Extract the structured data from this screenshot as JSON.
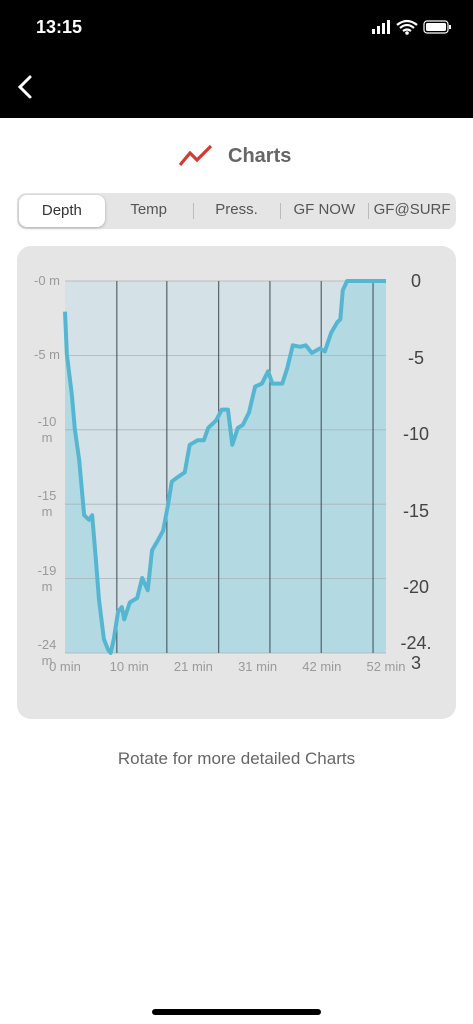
{
  "status_bar": {
    "time": "13:15"
  },
  "header": {
    "title": "Charts"
  },
  "tabs": {
    "items": [
      "Depth",
      "Temp",
      "Press.",
      "GF NOW",
      "GF@SURF"
    ],
    "selected": 0
  },
  "chart_data": {
    "type": "line",
    "x": [
      0,
      0.3,
      1.1,
      1.6,
      2.3,
      3.1,
      3.9,
      4.4,
      5.0,
      5.5,
      6.3,
      7.0,
      7.4,
      7.9,
      8.6,
      9.2,
      9.6,
      10.5,
      11.7,
      12.5,
      13.4,
      14.1,
      15.1,
      15.9,
      16.7,
      17.3,
      18.3,
      19.4,
      20.2,
      21.5,
      22.5,
      23.2,
      24.5,
      25.4,
      26.4,
      27.1,
      28.0,
      28.8,
      29.8,
      30.8,
      31.9,
      32.9,
      33.6,
      35.2,
      36.0,
      36.9,
      38.1,
      39.0,
      40.0,
      41.3,
      42.1,
      43.1,
      44.1,
      44.6,
      45.0,
      45.7,
      52.0
    ],
    "values": [
      -2.0,
      -4.8,
      -7.4,
      -9.7,
      -11.7,
      -15.3,
      -15.6,
      -15.3,
      -18.2,
      -20.8,
      -23.4,
      -24.1,
      -24.3,
      -23.4,
      -21.6,
      -21.3,
      -22.1,
      -21.0,
      -20.7,
      -19.4,
      -20.2,
      -17.6,
      -16.9,
      -16.3,
      -14.6,
      -13.1,
      -12.8,
      -12.5,
      -10.7,
      -10.4,
      -10.4,
      -9.6,
      -9.1,
      -8.4,
      -8.4,
      -10.7,
      -9.6,
      -9.4,
      -8.6,
      -6.9,
      -6.7,
      -5.9,
      -6.7,
      -6.7,
      -5.7,
      -4.2,
      -4.3,
      -4.2,
      -4.7,
      -4.4,
      -4.6,
      -3.4,
      -2.7,
      -2.5,
      -0.6,
      0,
      0
    ],
    "color": "#55b6d2",
    "area_color": "#b3dae2",
    "xlim": [
      0,
      52
    ],
    "xticks": [
      {
        "value": 0,
        "label": "0 min"
      },
      {
        "value": 10.4,
        "label": "10 min"
      },
      {
        "value": 20.8,
        "label": "21 min"
      },
      {
        "value": 31.2,
        "label": "31 min"
      },
      {
        "value": 41.6,
        "label": "42 min"
      },
      {
        "value": 52,
        "label": "52 min"
      }
    ],
    "xgrid": [
      8.4,
      16.5,
      24.9,
      33.2,
      41.5,
      49.9
    ],
    "ylim": [
      -24.3,
      0
    ],
    "yticks": [
      {
        "value": 0,
        "label": "-0 m"
      },
      {
        "value": -4.86,
        "label": "-5 m"
      },
      {
        "value": -9.72,
        "label": "-10 m"
      },
      {
        "value": -14.58,
        "label": "-15 m"
      },
      {
        "value": -19.44,
        "label": "-19 m"
      },
      {
        "value": -24.3,
        "label": "-24 m"
      }
    ],
    "y2lim": [
      -24.3,
      0
    ],
    "y2ticks": [
      0,
      -5,
      -10,
      -15,
      -20,
      -24.3
    ],
    "grid": true
  },
  "footer": "Rotate for more detailed Charts"
}
